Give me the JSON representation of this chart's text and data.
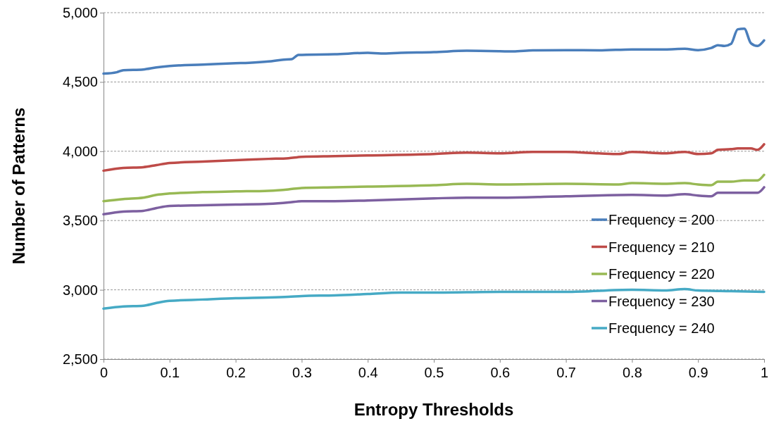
{
  "chart_data": {
    "type": "line",
    "xlabel": "Entropy Thresholds",
    "ylabel": "Number of Patterns",
    "xlim": [
      0,
      1
    ],
    "xticks": [
      0,
      0.1,
      0.2,
      0.3,
      0.4,
      0.5,
      0.6,
      0.7,
      0.8,
      0.9,
      1
    ],
    "ylim": [
      2500,
      5000
    ],
    "yticks": [
      {
        "value": 2500,
        "label": "2,500"
      },
      {
        "value": 3000,
        "label": "3,000"
      },
      {
        "value": 3500,
        "label": "3,500"
      },
      {
        "value": 4000,
        "label": "4,000"
      },
      {
        "value": 4500,
        "label": "4,500"
      },
      {
        "value": 5000,
        "label": "5,000"
      }
    ],
    "grid": "y",
    "legend": "bottom right",
    "marker": "none",
    "line_style": "solid",
    "series": [
      {
        "name": "Frequency = 200",
        "color": "#4a7ebb",
        "x": [
          0,
          0.02,
          0.03,
          0.06,
          0.08,
          0.1,
          0.15,
          0.2,
          0.22,
          0.25,
          0.27,
          0.285,
          0.295,
          0.35,
          0.4,
          0.42,
          0.45,
          0.5,
          0.55,
          0.6,
          0.62,
          0.65,
          0.7,
          0.75,
          0.8,
          0.85,
          0.88,
          0.9,
          0.92,
          0.93,
          0.94,
          0.95,
          0.96,
          0.97,
          0.98,
          0.99,
          1
        ],
        "values": [
          4560,
          4570,
          4585,
          4590,
          4605,
          4615,
          4625,
          4635,
          4638,
          4648,
          4660,
          4665,
          4695,
          4700,
          4710,
          4705,
          4710,
          4715,
          4725,
          4722,
          4720,
          4728,
          4730,
          4728,
          4735,
          4735,
          4740,
          4730,
          4745,
          4765,
          4760,
          4775,
          4880,
          4885,
          4780,
          4760,
          4800
        ]
      },
      {
        "name": "Frequency = 210",
        "color": "#be4b48",
        "x": [
          0,
          0.03,
          0.06,
          0.08,
          0.1,
          0.15,
          0.2,
          0.25,
          0.28,
          0.3,
          0.35,
          0.4,
          0.5,
          0.55,
          0.6,
          0.65,
          0.7,
          0.75,
          0.78,
          0.8,
          0.85,
          0.88,
          0.9,
          0.92,
          0.93,
          0.95,
          0.96,
          0.98,
          0.99,
          1
        ],
        "values": [
          3860,
          3880,
          3885,
          3900,
          3915,
          3925,
          3935,
          3945,
          3950,
          3960,
          3965,
          3970,
          3980,
          3990,
          3985,
          3995,
          3995,
          3985,
          3980,
          3995,
          3985,
          3995,
          3980,
          3985,
          4010,
          4015,
          4020,
          4020,
          4010,
          4050
        ]
      },
      {
        "name": "Frequency = 220",
        "color": "#98b954",
        "x": [
          0,
          0.03,
          0.06,
          0.08,
          0.1,
          0.15,
          0.2,
          0.25,
          0.28,
          0.3,
          0.35,
          0.4,
          0.5,
          0.55,
          0.6,
          0.7,
          0.78,
          0.8,
          0.85,
          0.88,
          0.9,
          0.92,
          0.93,
          0.95,
          0.97,
          0.99,
          1
        ],
        "values": [
          3640,
          3655,
          3665,
          3685,
          3695,
          3705,
          3710,
          3715,
          3725,
          3735,
          3740,
          3745,
          3755,
          3765,
          3760,
          3765,
          3760,
          3770,
          3765,
          3770,
          3760,
          3755,
          3780,
          3780,
          3790,
          3790,
          3830
        ]
      },
      {
        "name": "Frequency = 230",
        "color": "#7d60a0",
        "x": [
          0,
          0.03,
          0.06,
          0.08,
          0.1,
          0.15,
          0.2,
          0.25,
          0.28,
          0.3,
          0.35,
          0.4,
          0.5,
          0.55,
          0.6,
          0.7,
          0.8,
          0.85,
          0.88,
          0.9,
          0.92,
          0.93,
          0.95,
          0.99,
          1
        ],
        "values": [
          3545,
          3565,
          3570,
          3590,
          3605,
          3610,
          3615,
          3620,
          3630,
          3640,
          3640,
          3645,
          3660,
          3665,
          3665,
          3675,
          3685,
          3680,
          3690,
          3680,
          3675,
          3700,
          3700,
          3700,
          3740
        ]
      },
      {
        "name": "Frequency = 240",
        "color": "#46aac5",
        "x": [
          0,
          0.03,
          0.06,
          0.08,
          0.1,
          0.15,
          0.2,
          0.25,
          0.28,
          0.3,
          0.35,
          0.4,
          0.45,
          0.5,
          0.6,
          0.7,
          0.8,
          0.85,
          0.88,
          0.9,
          0.95,
          1
        ],
        "values": [
          2865,
          2880,
          2885,
          2905,
          2920,
          2930,
          2940,
          2945,
          2950,
          2955,
          2960,
          2970,
          2980,
          2980,
          2985,
          2985,
          3000,
          2995,
          3005,
          2995,
          2990,
          2985
        ]
      }
    ]
  }
}
